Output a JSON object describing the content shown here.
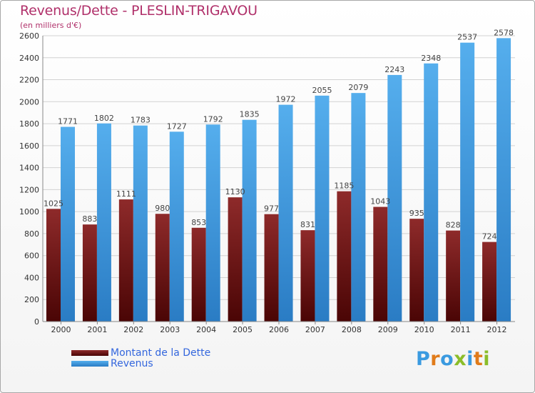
{
  "header": {
    "title": "Revenus/Dette - PLESLIN-TRIGAVOU",
    "subtitle": "(en milliers d'€)"
  },
  "chart_data": {
    "type": "bar",
    "title": "Revenus/Dette - PLESLIN-TRIGAVOU",
    "subtitle": "(en milliers d'€)",
    "categories": [
      "2000",
      "2001",
      "2002",
      "2003",
      "2004",
      "2005",
      "2006",
      "2007",
      "2008",
      "2009",
      "2010",
      "2011",
      "2012"
    ],
    "series": [
      {
        "name": "Montant de la Dette",
        "color": "#7a1a1a",
        "values": [
          1025,
          883,
          1111,
          980,
          853,
          1130,
          977,
          831,
          1185,
          1043,
          935,
          828,
          724
        ],
        "labels": [
          "1025",
          "883",
          "1111",
          "980",
          "853",
          "1130",
          "977",
          "831",
          "1185",
          "1043",
          "935",
          "828",
          "724"
        ]
      },
      {
        "name": "Revenus",
        "color": "#3a9ae0",
        "values": [
          1771,
          1802,
          1783,
          1727,
          1792,
          1835,
          1972,
          2055,
          2079,
          2243,
          2348,
          2537,
          2578
        ],
        "labels": [
          "1771",
          "1802",
          "1783",
          "1727",
          "1792",
          "1835",
          "1972",
          "2055",
          "2079",
          "2243",
          "2348",
          "2537",
          "2578"
        ]
      }
    ],
    "ylim": [
      0,
      2600
    ],
    "yticks": [
      "0",
      "200",
      "400",
      "600",
      "800",
      "1000",
      "1200",
      "1400",
      "1600",
      "1800",
      "2000",
      "2200",
      "2400",
      "2600"
    ],
    "grid": true,
    "legend": "bottom-left"
  },
  "legend": {
    "items": [
      {
        "label": "Montant de la Dette",
        "color": "#6b0f0f"
      },
      {
        "label": "Revenus",
        "color": "#3a9ae0"
      }
    ]
  },
  "logo": {
    "letters": [
      "P",
      "r",
      "o",
      "x",
      "i",
      "t",
      "i"
    ],
    "colors": [
      "#3a9ae0",
      "#e07b1a",
      "#3a9ae0",
      "#8bbd2a",
      "#3a9ae0",
      "#e07b1a",
      "#8bbd2a"
    ]
  }
}
